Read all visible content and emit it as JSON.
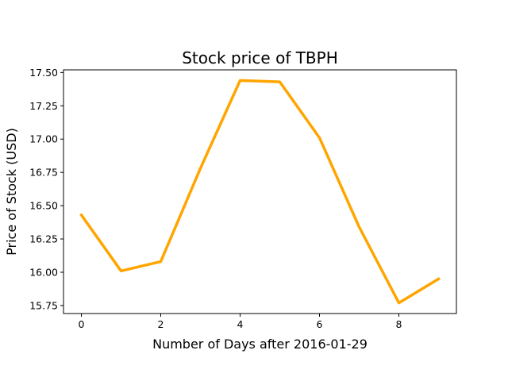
{
  "chart_data": {
    "type": "line",
    "title": "Stock price of TBPH",
    "xlabel": "Number of Days after 2016-01-29",
    "ylabel": "Price of Stock (USD)",
    "xlim": [
      -0.45,
      9.45
    ],
    "ylim": [
      15.69,
      17.52
    ],
    "xticks": [
      0,
      2,
      4,
      6,
      8
    ],
    "xtick_labels": [
      "0",
      "2",
      "4",
      "6",
      "8"
    ],
    "yticks": [
      15.75,
      16.0,
      16.25,
      16.5,
      16.75,
      17.0,
      17.25,
      17.5
    ],
    "ytick_labels": [
      "15.75",
      "16.00",
      "16.25",
      "16.50",
      "16.75",
      "17.00",
      "17.25",
      "17.50"
    ],
    "grid": false,
    "series": [
      {
        "color": "#FFA500",
        "x": [
          0,
          1,
          2,
          3,
          4,
          5,
          6,
          7,
          8,
          9
        ],
        "y": [
          16.43,
          16.01,
          16.08,
          16.78,
          17.44,
          17.43,
          17.01,
          16.34,
          15.77,
          15.95
        ]
      }
    ]
  }
}
